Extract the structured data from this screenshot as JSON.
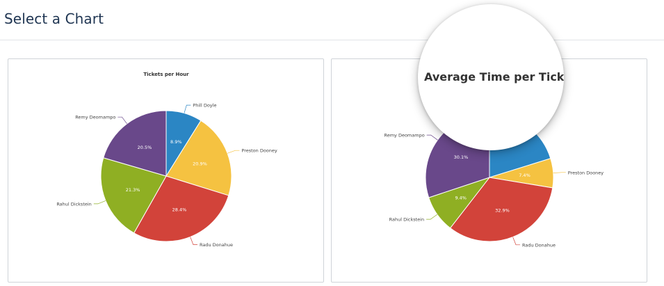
{
  "header": {
    "title": "Select a Chart"
  },
  "colors": {
    "blue": "#2b86c4",
    "yellow": "#f5c241",
    "red": "#d2433a",
    "green": "#8faf23",
    "purple": "#69488a"
  },
  "chart_data": [
    {
      "type": "pie",
      "title": "Tickets per Hour",
      "slices": [
        {
          "label": "Phill Doyle",
          "value": 8.9,
          "display": "8.9%",
          "color": "#2b86c4"
        },
        {
          "label": "Preston Dooney",
          "value": 20.9,
          "display": "20.9%",
          "color": "#f5c241"
        },
        {
          "label": "Radu Donahue",
          "value": 28.4,
          "display": "28.4%",
          "color": "#d2433a"
        },
        {
          "label": "Rahul Dickstein",
          "value": 21.3,
          "display": "21.3%",
          "color": "#8faf23"
        },
        {
          "label": "Remy Deomampo",
          "value": 20.5,
          "display": "20.5%",
          "color": "#69488a"
        }
      ]
    },
    {
      "type": "pie",
      "title": "Average Time per Ticket (m",
      "slices": [
        {
          "label": "",
          "value": 20.2,
          "display": "",
          "color": "#2b86c4"
        },
        {
          "label": "Preston Dooney",
          "value": 7.4,
          "display": "7.4%",
          "color": "#f5c241"
        },
        {
          "label": "Radu Donahue",
          "value": 32.9,
          "display": "32.9%",
          "color": "#d2433a"
        },
        {
          "label": "Rahul Dickstein",
          "value": 9.4,
          "display": "9.4%",
          "color": "#8faf23"
        },
        {
          "label": "Remy Deomampo",
          "value": 30.1,
          "display": "30.1%",
          "color": "#69488a"
        }
      ]
    }
  ]
}
